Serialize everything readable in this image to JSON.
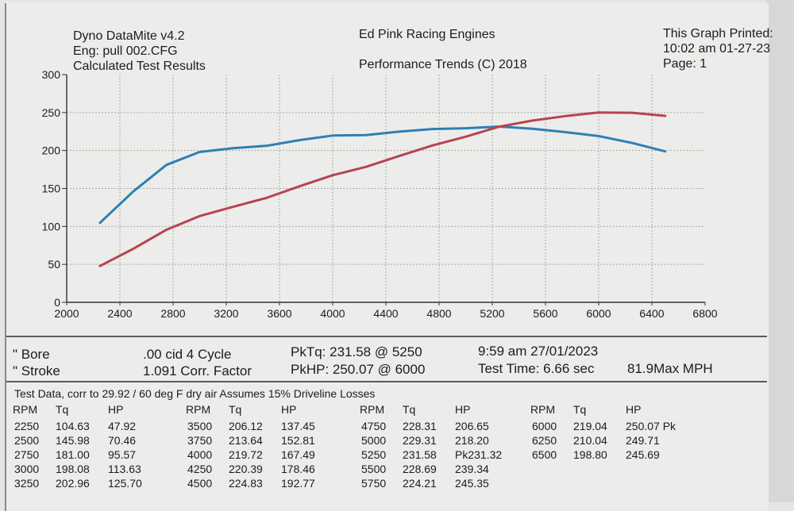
{
  "header": {
    "program": "Dyno DataMite v4.2",
    "engine_file": "Eng: pull 002.CFG",
    "results_label": "Calculated Test Results",
    "company": "Ed Pink Racing Engines",
    "copyright": "Performance Trends (C) 2018",
    "printed_label": "This Graph Printed:",
    "printed_time": "10:02 am 01-27-23",
    "page": "Page: 1"
  },
  "engine_info": {
    "bore": "\" Bore",
    "stroke": "\" Stroke",
    "cid": ".00 cid  4 Cycle",
    "corr_factor": "1.091 Corr. Factor",
    "pk_tq": "PkTq: 231.58 @  5250",
    "pk_hp": "PkHP: 250.07 @  6000",
    "test_datetime": "9:59 am  27/01/2023",
    "test_time": "Test Time: 6.66 sec",
    "max_mph": "81.9Max MPH"
  },
  "chart_data": {
    "type": "line",
    "x": [
      2250,
      2500,
      2750,
      3000,
      3250,
      3500,
      3750,
      4000,
      4250,
      4500,
      4750,
      5000,
      5250,
      5500,
      5750,
      6000,
      6250,
      6500
    ],
    "series": [
      {
        "name": "Tq",
        "color": "#2e7fb5",
        "values": [
          104.63,
          145.98,
          181.0,
          198.08,
          202.96,
          206.12,
          213.64,
          219.72,
          220.39,
          224.83,
          228.31,
          229.31,
          231.58,
          228.69,
          224.21,
          219.04,
          210.04,
          198.8
        ]
      },
      {
        "name": "HP",
        "color": "#b8434f",
        "values": [
          47.92,
          70.46,
          95.57,
          113.63,
          125.7,
          137.45,
          152.81,
          167.49,
          178.46,
          192.77,
          206.65,
          218.2,
          231.32,
          239.34,
          245.35,
          250.07,
          249.71,
          245.69
        ]
      }
    ],
    "xlim": [
      2000,
      6800
    ],
    "ylim": [
      0,
      300
    ],
    "x_ticks": [
      "2000",
      "2400",
      "2800",
      "3200",
      "3600",
      "4000",
      "4400",
      "4800",
      "5200",
      "5600",
      "6000",
      "6400",
      "6800"
    ],
    "y_ticks": [
      "0",
      "50",
      "100",
      "150",
      "200",
      "250",
      "300"
    ],
    "grid": true
  },
  "test_table": {
    "caption": "Test Data, corr to 29.92 / 60 deg F dry air  Assumes 15% Driveline Losses",
    "headers": [
      "RPM",
      "Tq",
      "HP"
    ],
    "columns": [
      [
        [
          "2250",
          "104.63",
          "47.92"
        ],
        [
          "2500",
          "145.98",
          "70.46"
        ],
        [
          "2750",
          "181.00",
          "95.57"
        ],
        [
          "3000",
          "198.08",
          "113.63"
        ],
        [
          "3250",
          "202.96",
          "125.70"
        ]
      ],
      [
        [
          "3500",
          "206.12",
          "137.45"
        ],
        [
          "3750",
          "213.64",
          "152.81"
        ],
        [
          "4000",
          "219.72",
          "167.49"
        ],
        [
          "4250",
          "220.39",
          "178.46"
        ],
        [
          "4500",
          "224.83",
          "192.77"
        ]
      ],
      [
        [
          "4750",
          "228.31",
          "206.65"
        ],
        [
          "5000",
          "229.31",
          "218.20"
        ],
        [
          "5250",
          "231.58",
          "Pk231.32"
        ],
        [
          "5500",
          "228.69",
          "239.34"
        ],
        [
          "5750",
          "224.21",
          "245.35"
        ]
      ],
      [
        [
          "6000",
          "219.04",
          "250.07 Pk"
        ],
        [
          "6250",
          "210.04",
          "249.71"
        ],
        [
          "6500",
          "198.80",
          "245.69"
        ]
      ]
    ]
  }
}
